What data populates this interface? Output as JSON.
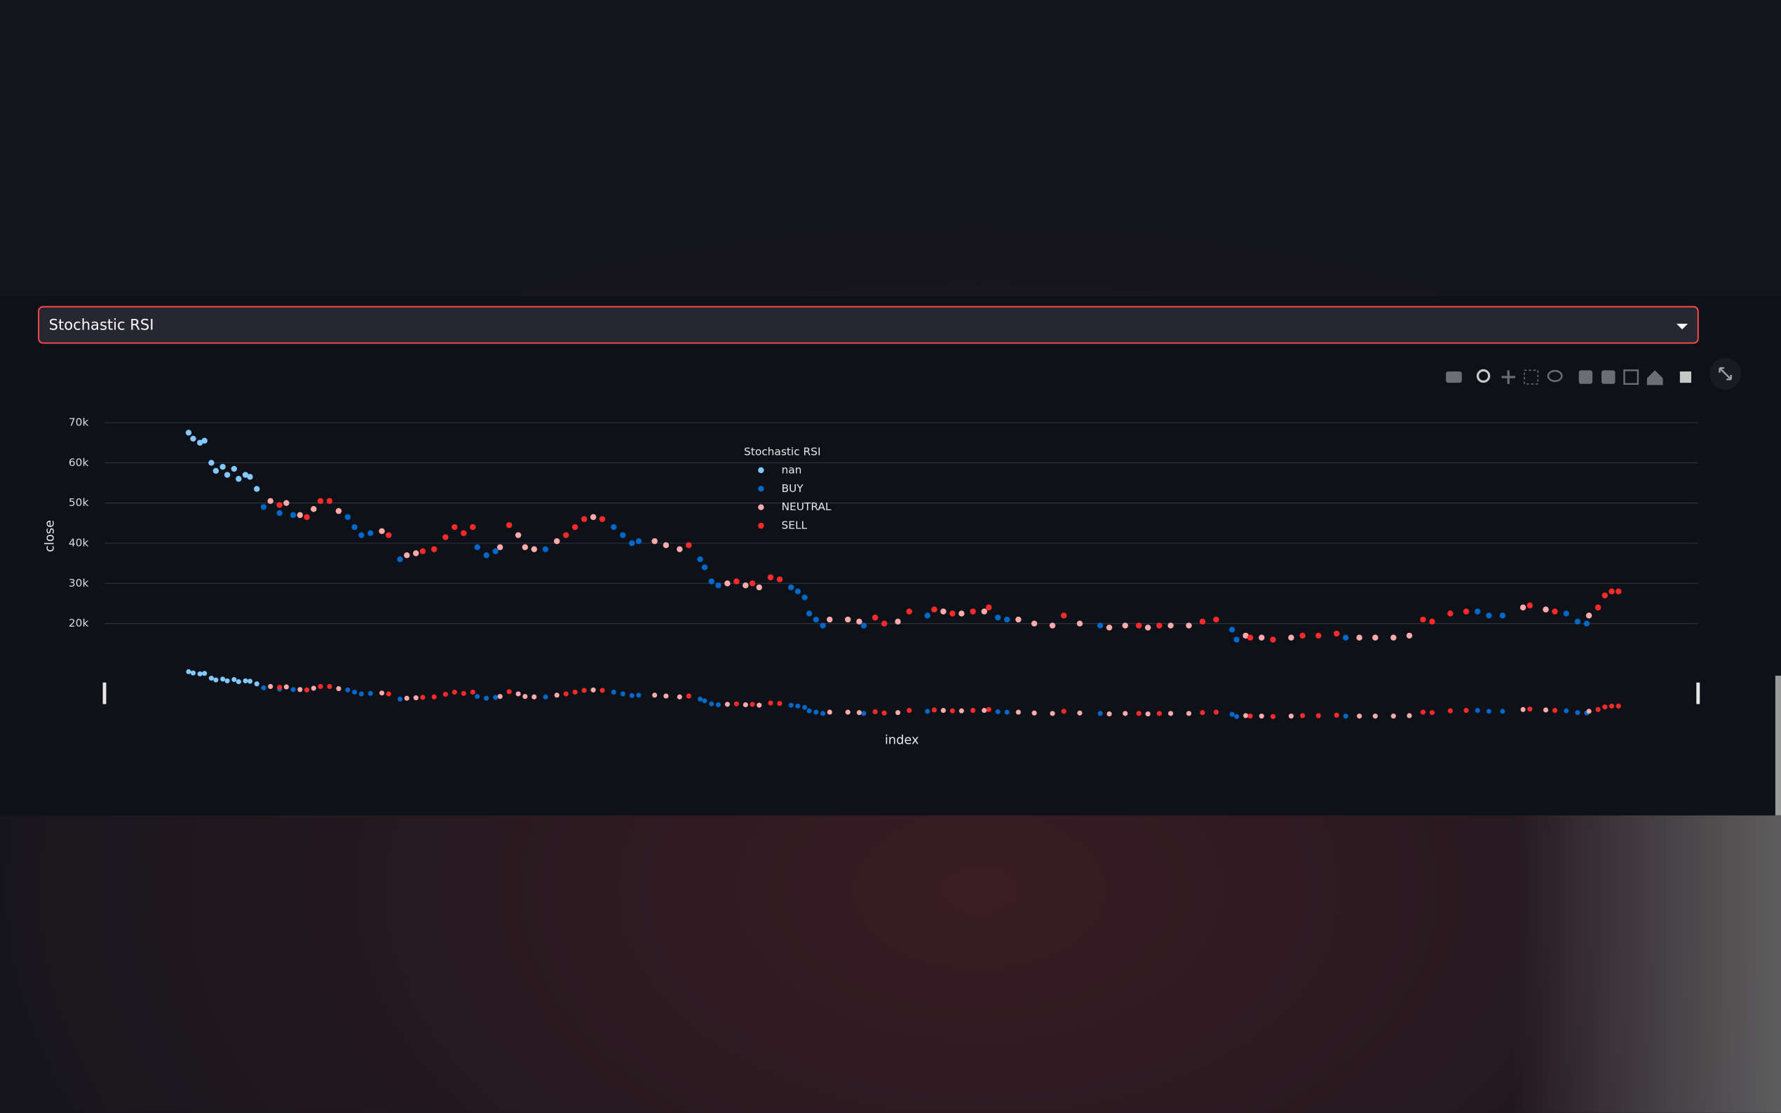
{
  "select": {
    "value": "Stochastic RSI"
  },
  "chart_data": {
    "type": "scatter",
    "legend_title": "Stochastic RSI",
    "xlabel": "index",
    "ylabel": "close",
    "xlim": [
      0,
      701
    ],
    "ylim": [
      12000,
      72000
    ],
    "yticks": [
      {
        "value": 20000,
        "label": "20k"
      },
      {
        "value": 30000,
        "label": "30k"
      },
      {
        "value": 40000,
        "label": "40k"
      },
      {
        "value": 50000,
        "label": "50k"
      },
      {
        "value": 60000,
        "label": "60k"
      },
      {
        "value": 70000,
        "label": "70k"
      }
    ],
    "grid": true,
    "legend": "top-center",
    "rangeslider": true,
    "series": [
      {
        "name": "nan",
        "color": "#83c9ff",
        "x": [
          37,
          39,
          42,
          44,
          47,
          49,
          52,
          54,
          57,
          59,
          62,
          64,
          67
        ],
        "values": [
          67500,
          66000,
          65000,
          65500,
          60000,
          58000,
          59000,
          57000,
          58500,
          56000,
          57000,
          56500,
          53500
        ]
      },
      {
        "name": "BUY",
        "color": "#0068c9",
        "x": [
          70,
          77,
          83,
          107,
          110,
          113,
          117,
          130,
          164,
          168,
          172,
          194,
          224,
          228,
          232,
          235,
          262,
          264,
          267,
          270,
          302,
          305,
          308,
          310,
          313,
          316,
          334,
          362,
          393,
          397,
          438,
          496,
          498,
          546,
          604,
          609,
          615,
          643,
          648,
          652
        ],
        "values": [
          49000,
          47500,
          47000,
          46500,
          44000,
          42000,
          42500,
          36000,
          39000,
          37000,
          38000,
          38500,
          44000,
          42000,
          40000,
          40500,
          36000,
          34000,
          30500,
          29500,
          29000,
          28000,
          26500,
          22500,
          21000,
          19500,
          19500,
          22000,
          21500,
          21000,
          19500,
          18500,
          16000,
          16500,
          23000,
          22000,
          22000,
          22500,
          20500,
          20000
        ]
      },
      {
        "name": "NEUTRAL",
        "color": "#ffabab",
        "x": [
          73,
          80,
          86,
          92,
          103,
          122,
          133,
          137,
          174,
          182,
          185,
          189,
          199,
          215,
          242,
          247,
          253,
          274,
          282,
          288,
          319,
          327,
          332,
          349,
          369,
          377,
          387,
          402,
          409,
          417,
          429,
          442,
          449,
          459,
          469,
          477,
          502,
          509,
          522,
          552,
          559,
          567,
          574,
          624,
          634,
          653
        ],
        "values": [
          50500,
          50000,
          47000,
          48500,
          48000,
          43000,
          37000,
          37500,
          39000,
          42000,
          39000,
          38500,
          40500,
          46500,
          40500,
          39500,
          38500,
          30000,
          29500,
          29000,
          21000,
          21000,
          20500,
          20500,
          23000,
          22500,
          23000,
          21000,
          20000,
          19500,
          20000,
          19000,
          19500,
          19000,
          19500,
          19500,
          17000,
          16500,
          16500,
          16500,
          16500,
          16500,
          17000,
          24000,
          23500,
          22000
        ]
      },
      {
        "name": "SELL",
        "color": "#ff2b2b",
        "x": [
          77,
          89,
          95,
          99,
          125,
          140,
          145,
          150,
          154,
          158,
          162,
          178,
          203,
          207,
          211,
          219,
          257,
          278,
          285,
          293,
          297,
          339,
          343,
          354,
          365,
          373,
          382,
          389,
          422,
          455,
          464,
          483,
          489,
          504,
          514,
          527,
          534,
          542,
          580,
          584,
          592,
          599,
          627,
          638,
          657,
          660,
          663,
          666
        ],
        "values": [
          49500,
          46500,
          50500,
          50500,
          42000,
          38000,
          38500,
          41500,
          44000,
          42500,
          44000,
          44500,
          42000,
          44000,
          46000,
          46000,
          39500,
          30500,
          30000,
          31500,
          31000,
          21500,
          20000,
          23000,
          23500,
          22500,
          23000,
          24000,
          22000,
          19500,
          19500,
          20500,
          21000,
          16500,
          16000,
          17000,
          17000,
          17500,
          21000,
          20500,
          22500,
          23000,
          24500,
          23000,
          24000,
          27000,
          28000,
          28000
        ]
      }
    ]
  }
}
